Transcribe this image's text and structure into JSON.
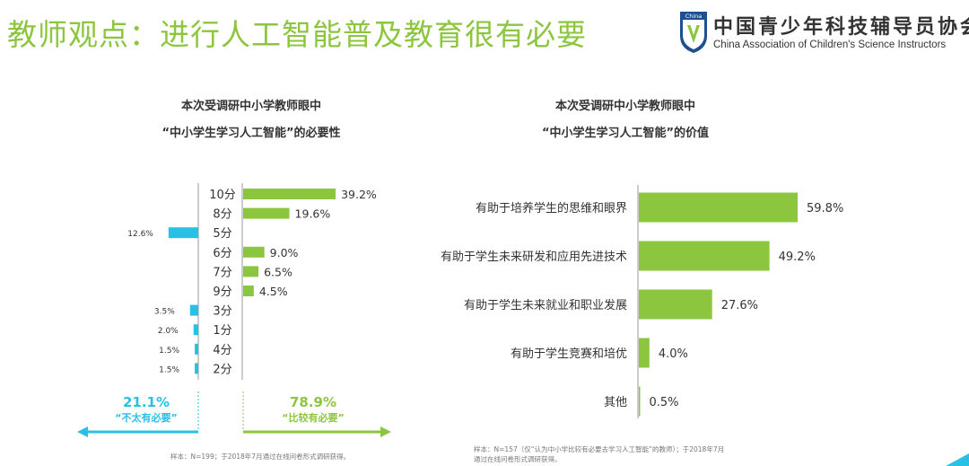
{
  "header": {
    "title": "教师观点：进行人工智能普及教育很有必要"
  },
  "logo": {
    "name_cn": "中国青少年科技辅导员协会",
    "name_en": "China Association of Children's Science Instructors",
    "badge_text": "China"
  },
  "colors": {
    "accent_green": "#8cc63f",
    "accent_blue": "#29c0e6",
    "axis": "#999999",
    "text": "#333333"
  },
  "chart_data": [
    {
      "type": "bar",
      "orientation": "horizontal-diverging",
      "title_line1": "本次受调研中小学教师眼中",
      "title_line2": "“中小学生学习人工智能”的必要性",
      "categories": [
        "10分",
        "8分",
        "5分",
        "6分",
        "7分",
        "9分",
        "3分",
        "1分",
        "4分",
        "2分"
      ],
      "values": [
        39.2,
        19.6,
        -12.6,
        9.0,
        6.5,
        4.5,
        -3.5,
        -2.0,
        -1.5,
        -1.5
      ],
      "value_labels": [
        "39.2%",
        "19.6%",
        "12.6%",
        "9.0%",
        "6.5%",
        "4.5%",
        "3.5%",
        "2.0%",
        "1.5%",
        "1.5%"
      ],
      "summary_negative": {
        "value": "21.1%",
        "label": "“不太有必要”"
      },
      "summary_positive": {
        "value": "78.9%",
        "label": "“比较有必要”"
      },
      "footnote": "样本：N=199；于2018年7月通过在线问卷形式调研获得。"
    },
    {
      "type": "bar",
      "orientation": "horizontal",
      "title_line1": "本次受调研中小学教师眼中",
      "title_line2": "“中小学生学习人工智能”的价值",
      "categories": [
        "有助于培养学生的思维和眼界",
        "有助于学生未来研发和应用先进技术",
        "有助于学生未来就业和职业发展",
        "有助于学生竞赛和培优",
        "其他"
      ],
      "values": [
        59.8,
        49.2,
        27.6,
        4.0,
        0.5
      ],
      "value_labels": [
        "59.8%",
        "49.2%",
        "27.6%",
        "4.0%",
        "0.5%"
      ],
      "footnote_line1": "样本：N=157（仅“认为中小学比较有必要去学习人工智能”的教师）；于2018年7月",
      "footnote_line2": "通过在线问卷形式调研获得。"
    }
  ]
}
